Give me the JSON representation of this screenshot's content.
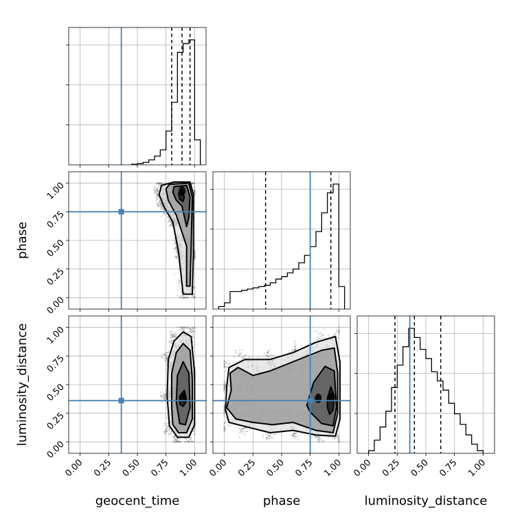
{
  "chart_data": {
    "type": "corner",
    "parameters": [
      "geocent_time",
      "phase",
      "luminosity_distance"
    ],
    "axis_labels": {
      "geocent_time": "geocent_time",
      "phase": "phase",
      "luminosity_distance": "luminosity_distance"
    },
    "tick_values": [
      0.0,
      0.25,
      0.5,
      0.75,
      1.0
    ],
    "tick_labels": [
      "0.00",
      "0.25",
      "0.50",
      "0.75",
      "1.00"
    ],
    "grid": true,
    "colors": {
      "truth": "#4682b4",
      "hist": "#000000",
      "scatter": "#7f7f7f"
    },
    "truths": {
      "geocent_time": 0.36,
      "phase": 0.75,
      "luminosity_distance": 0.36
    },
    "histograms": [
      {
        "parameter": "geocent_time",
        "range": [
          -0.1,
          1.1
        ],
        "bin_edges": [
          0.45,
          0.5,
          0.55,
          0.6,
          0.65,
          0.7,
          0.75,
          0.8,
          0.85,
          0.9,
          0.95,
          1.0,
          1.05
        ],
        "counts": [
          0.005,
          0.01,
          0.02,
          0.04,
          0.07,
          0.12,
          0.27,
          0.5,
          0.9,
          0.97,
          1.0,
          0.2
        ],
        "quantiles": [
          0.8,
          0.89,
          0.96
        ]
      },
      {
        "parameter": "phase",
        "range": [
          -0.1,
          1.1
        ],
        "bin_edges": [
          -0.05,
          0.0,
          0.05,
          0.1,
          0.15,
          0.2,
          0.25,
          0.3,
          0.35,
          0.4,
          0.45,
          0.5,
          0.55,
          0.6,
          0.65,
          0.7,
          0.75,
          0.8,
          0.85,
          0.9,
          0.95,
          1.0,
          1.05
        ],
        "counts": [
          0.02,
          0.05,
          0.14,
          0.14,
          0.15,
          0.16,
          0.17,
          0.18,
          0.19,
          0.21,
          0.24,
          0.26,
          0.29,
          0.32,
          0.37,
          0.43,
          0.5,
          0.62,
          0.77,
          0.93,
          1.0,
          0.18
        ],
        "quantiles": [
          0.36,
          0.75,
          0.93
        ]
      },
      {
        "parameter": "luminosity_distance",
        "range": [
          -0.1,
          1.1
        ],
        "bin_edges": [
          0.0,
          0.05,
          0.1,
          0.15,
          0.2,
          0.25,
          0.3,
          0.35,
          0.4,
          0.45,
          0.5,
          0.55,
          0.6,
          0.65,
          0.7,
          0.75,
          0.8,
          0.85,
          0.9,
          0.95,
          1.0
        ],
        "counts": [
          0.02,
          0.1,
          0.2,
          0.32,
          0.5,
          0.67,
          0.81,
          0.95,
          0.88,
          0.79,
          0.72,
          0.62,
          0.55,
          0.48,
          0.38,
          0.3,
          0.22,
          0.14,
          0.07,
          0.02
        ],
        "quantiles": [
          0.23,
          0.4,
          0.63
        ]
      }
    ],
    "joint_panels": [
      {
        "x": "geocent_time",
        "y": "phase",
        "scatter_extent": {
          "x": [
            0.55,
            1.0
          ],
          "y": [
            0.0,
            1.0
          ]
        },
        "density_peaks": [
          {
            "x": 0.89,
            "y": 0.93
          }
        ],
        "contours": [
          {
            "level": 1,
            "points": [
              [
                0.89,
                0.93
              ],
              [
                0.91,
                0.88
              ],
              [
                0.9,
                0.84
              ],
              [
                0.87,
                0.86
              ],
              [
                0.86,
                0.91
              ]
            ]
          },
          {
            "level": 2,
            "points": [
              [
                0.82,
                0.97
              ],
              [
                0.93,
                0.98
              ],
              [
                0.96,
                0.88
              ],
              [
                0.95,
                0.7
              ],
              [
                0.93,
                0.62
              ],
              [
                0.89,
                0.8
              ],
              [
                0.84,
                0.85
              ],
              [
                0.81,
                0.92
              ]
            ]
          },
          {
            "level": 3,
            "points": [
              [
                0.78,
                0.99
              ],
              [
                0.95,
                1.0
              ],
              [
                0.98,
                0.88
              ],
              [
                0.97,
                0.45
              ],
              [
                0.96,
                0.1
              ],
              [
                0.93,
                0.1
              ],
              [
                0.93,
                0.45
              ],
              [
                0.84,
                0.72
              ],
              [
                0.77,
                0.85
              ],
              [
                0.75,
                0.95
              ]
            ]
          },
          {
            "level": 4,
            "points": [
              [
                0.71,
                0.98
              ],
              [
                0.82,
                1.01
              ],
              [
                0.96,
                1.01
              ],
              [
                0.99,
                0.9
              ],
              [
                0.99,
                0.4
              ],
              [
                0.98,
                0.03
              ],
              [
                0.9,
                0.03
              ],
              [
                0.86,
                0.4
              ],
              [
                0.81,
                0.66
              ],
              [
                0.73,
                0.8
              ],
              [
                0.69,
                0.9
              ]
            ]
          }
        ]
      },
      {
        "x": "geocent_time",
        "y": "luminosity_distance",
        "scatter_extent": {
          "x": [
            0.55,
            1.0
          ],
          "y": [
            0.0,
            1.0
          ]
        },
        "density_peaks": [
          {
            "x": 0.9,
            "y": 0.39
          }
        ],
        "contours": [
          {
            "level": 1,
            "points": [
              [
                0.87,
                0.4
              ],
              [
                0.91,
                0.45
              ],
              [
                0.93,
                0.36
              ],
              [
                0.9,
                0.31
              ],
              [
                0.87,
                0.33
              ]
            ]
          },
          {
            "level": 2,
            "points": [
              [
                0.84,
                0.35
              ],
              [
                0.85,
                0.58
              ],
              [
                0.9,
                0.7
              ],
              [
                0.95,
                0.6
              ],
              [
                0.96,
                0.3
              ],
              [
                0.92,
                0.15
              ],
              [
                0.87,
                0.16
              ]
            ]
          },
          {
            "level": 3,
            "points": [
              [
                0.8,
                0.3
              ],
              [
                0.8,
                0.6
              ],
              [
                0.84,
                0.78
              ],
              [
                0.9,
                0.86
              ],
              [
                0.96,
                0.8
              ],
              [
                0.98,
                0.55
              ],
              [
                0.98,
                0.2
              ],
              [
                0.93,
                0.08
              ],
              [
                0.86,
                0.08
              ],
              [
                0.81,
                0.15
              ]
            ]
          },
          {
            "level": 4,
            "points": [
              [
                0.76,
                0.4
              ],
              [
                0.77,
                0.72
              ],
              [
                0.82,
                0.88
              ],
              [
                0.9,
                0.96
              ],
              [
                0.97,
                0.92
              ],
              [
                1.0,
                0.6
              ],
              [
                1.0,
                0.15
              ],
              [
                0.95,
                0.04
              ],
              [
                0.85,
                0.04
              ],
              [
                0.78,
                0.14
              ]
            ]
          }
        ]
      },
      {
        "x": "phase",
        "y": "luminosity_distance",
        "scatter_extent": {
          "x": [
            0.0,
            1.0
          ],
          "y": [
            0.0,
            1.0
          ]
        },
        "density_peaks": [
          {
            "x": 0.93,
            "y": 0.39
          },
          {
            "x": 0.82,
            "y": 0.38
          }
        ],
        "contours": [
          {
            "level": 1,
            "points": [
              [
                0.9,
                0.38
              ],
              [
                0.93,
                0.48
              ],
              [
                0.96,
                0.4
              ],
              [
                0.95,
                0.28
              ],
              [
                0.92,
                0.24
              ],
              [
                0.9,
                0.3
              ]
            ]
          },
          {
            "level": 2,
            "points": [
              [
                0.72,
                0.32
              ],
              [
                0.78,
                0.52
              ],
              [
                0.88,
                0.66
              ],
              [
                0.96,
                0.62
              ],
              [
                0.98,
                0.3
              ],
              [
                0.95,
                0.14
              ],
              [
                0.85,
                0.16
              ],
              [
                0.75,
                0.26
              ]
            ]
          },
          {
            "level": 3,
            "points": [
              [
                0.05,
                0.6
              ],
              [
                0.12,
                0.65
              ],
              [
                0.25,
                0.58
              ],
              [
                0.4,
                0.62
              ],
              [
                0.55,
                0.68
              ],
              [
                0.7,
                0.74
              ],
              [
                0.85,
                0.8
              ],
              [
                0.96,
                0.82
              ],
              [
                0.99,
                0.6
              ],
              [
                0.99,
                0.25
              ],
              [
                0.95,
                0.08
              ],
              [
                0.8,
                0.1
              ],
              [
                0.6,
                0.17
              ],
              [
                0.42,
                0.15
              ],
              [
                0.25,
                0.17
              ],
              [
                0.1,
                0.2
              ],
              [
                0.02,
                0.3
              ],
              [
                0.06,
                0.45
              ]
            ]
          },
          {
            "level": 4,
            "points": [
              [
                0.02,
                0.48
              ],
              [
                0.04,
                0.65
              ],
              [
                0.18,
                0.72
              ],
              [
                0.4,
                0.72
              ],
              [
                0.6,
                0.78
              ],
              [
                0.8,
                0.87
              ],
              [
                0.97,
                0.92
              ],
              [
                1.01,
                0.7
              ],
              [
                1.01,
                0.2
              ],
              [
                0.97,
                0.05
              ],
              [
                0.8,
                0.06
              ],
              [
                0.6,
                0.1
              ],
              [
                0.4,
                0.08
              ],
              [
                0.2,
                0.13
              ],
              [
                0.04,
                0.17
              ],
              [
                0.01,
                0.28
              ]
            ]
          }
        ]
      }
    ]
  }
}
